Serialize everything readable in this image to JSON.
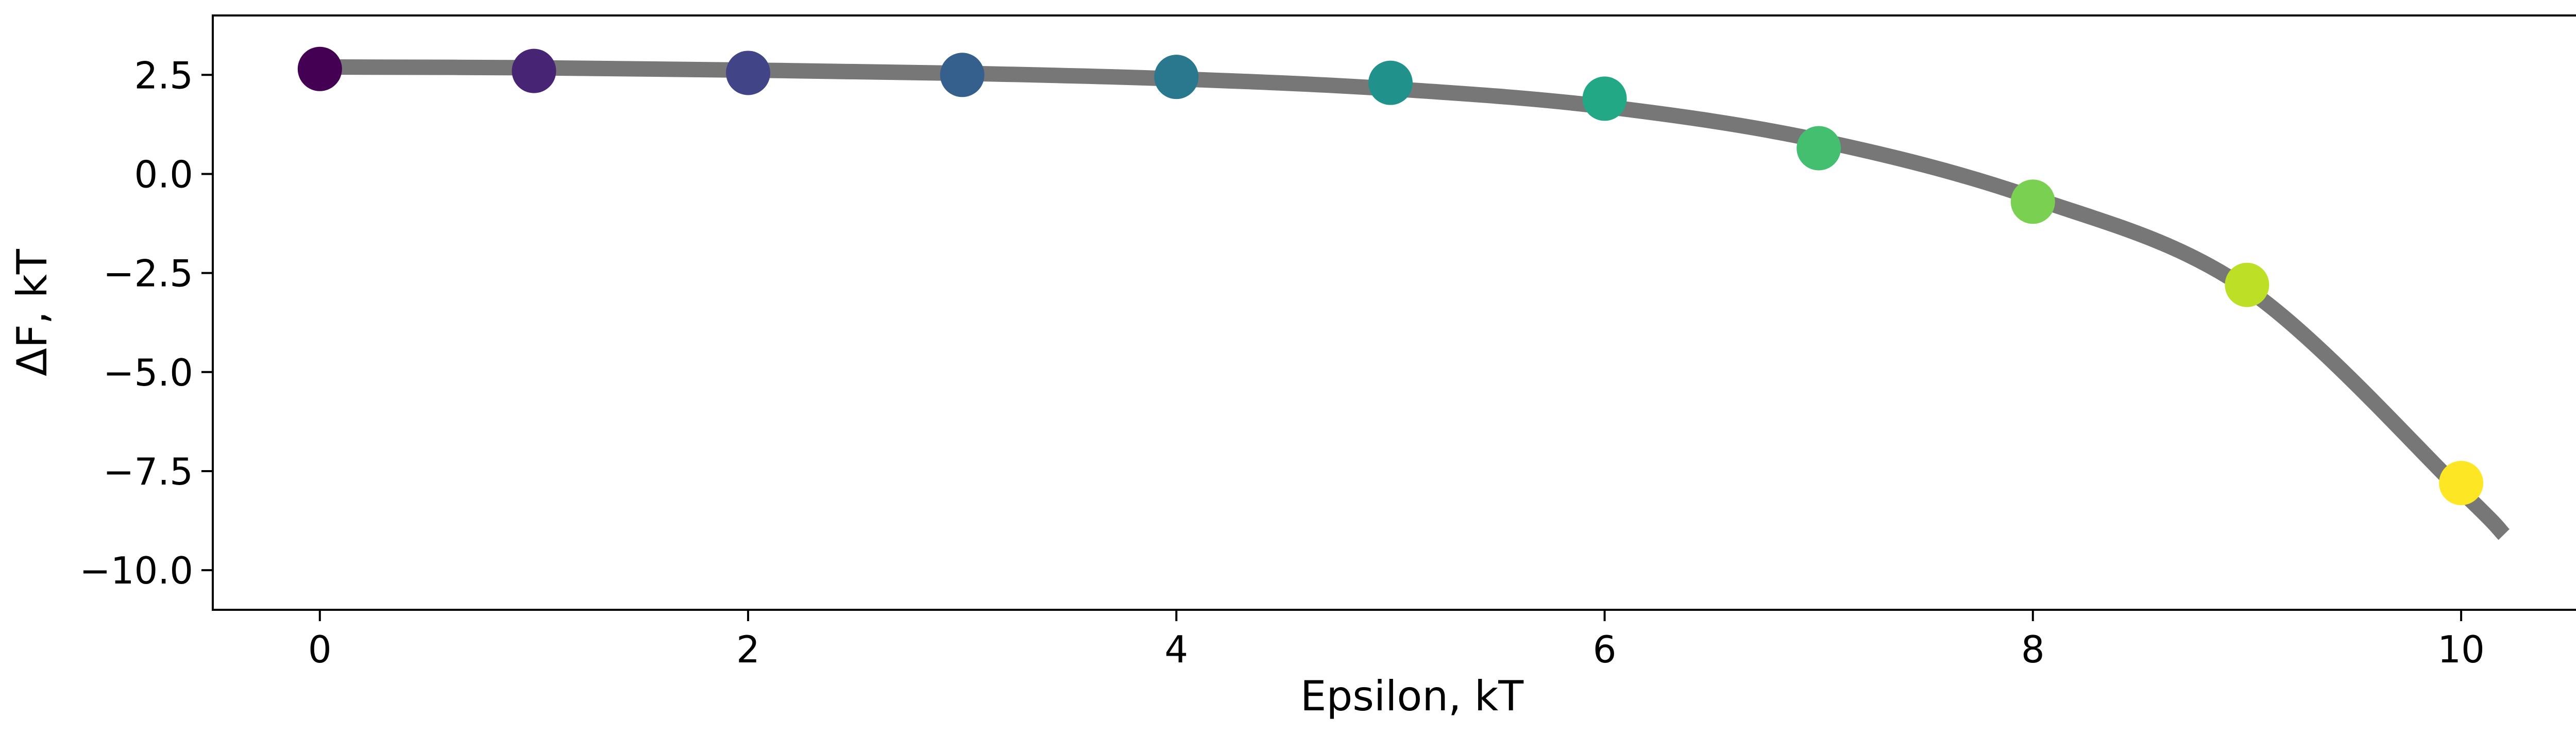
{
  "chart_data": {
    "type": "scatter",
    "title": "",
    "xlabel": "Epsilon, kT",
    "ylabel": "ΔF, kT",
    "xlim": [
      -0.5,
      10.7
    ],
    "ylim": [
      -11.0,
      4.0
    ],
    "grid": false,
    "x_ticks": [
      0,
      2,
      4,
      6,
      8,
      10
    ],
    "x_tick_labels": [
      "0",
      "2",
      "4",
      "6",
      "8",
      "10"
    ],
    "y_ticks": [
      2.5,
      0.0,
      -2.5,
      -5.0,
      -7.5,
      -10.0
    ],
    "y_tick_labels": [
      "2.5",
      "0.0",
      "−2.5",
      "−5.0",
      "−7.5",
      "−10.0"
    ],
    "points": {
      "x": [
        0,
        1,
        2,
        3,
        4,
        5,
        6,
        7,
        8,
        9,
        10
      ],
      "y": [
        2.65,
        2.6,
        2.55,
        2.5,
        2.45,
        2.3,
        1.9,
        0.65,
        -0.7,
        -2.8,
        -7.8
      ],
      "colors": [
        "#440154",
        "#482475",
        "#414487",
        "#355f8d",
        "#2a788e",
        "#21918c",
        "#22a884",
        "#44bf70",
        "#7ad151",
        "#bddf26",
        "#fde725"
      ]
    },
    "fit_curve": {
      "x": [
        0,
        1,
        2,
        3,
        4,
        5,
        6,
        7,
        8,
        9,
        10,
        10.2
      ],
      "y": [
        2.7,
        2.68,
        2.62,
        2.54,
        2.4,
        2.15,
        1.7,
        0.85,
        -0.6,
        -2.9,
        -8.0,
        -9.1
      ],
      "color": "#777777"
    }
  }
}
